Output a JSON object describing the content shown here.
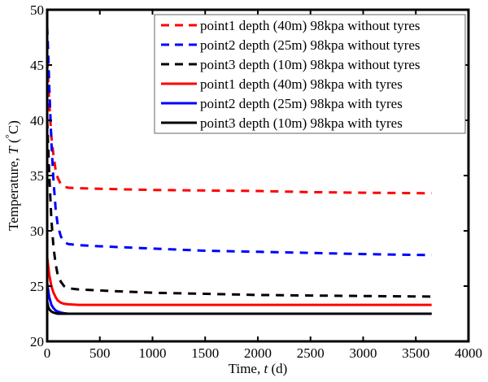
{
  "chart_data": {
    "type": "line",
    "title": "",
    "xlabel": "Time, t (d)",
    "xlabel_parts": {
      "prefix": "Time, ",
      "var": "t",
      "suffix": " (d)"
    },
    "ylabel": "Temperature, T (°C)",
    "ylabel_parts": {
      "prefix": "Temperature, ",
      "var": "T",
      "suffix": " (",
      "degree": "°",
      "unit": "C)"
    },
    "xlim": [
      0,
      4000
    ],
    "ylim": [
      20,
      50
    ],
    "xticks": [
      0,
      500,
      1000,
      1500,
      2000,
      2500,
      3000,
      3500,
      4000
    ],
    "yticks": [
      20,
      25,
      30,
      35,
      40,
      45,
      50
    ],
    "grid": false,
    "legend_position": "top-right",
    "series": [
      {
        "name": "point1 depth (40m) 98kpa without tyres",
        "color": "#ff0000",
        "style": "dashed",
        "x": [
          0,
          20,
          40,
          60,
          80,
          100,
          130,
          160,
          200,
          300,
          500,
          1000,
          1500,
          2000,
          2500,
          3000,
          3650
        ],
        "y": [
          45.5,
          41.5,
          38.5,
          36.8,
          35.5,
          34.8,
          34.2,
          34.0,
          33.9,
          33.85,
          33.8,
          33.7,
          33.65,
          33.6,
          33.5,
          33.45,
          33.4
        ]
      },
      {
        "name": "point2 depth (25m) 98kpa without tyres",
        "color": "#0000ff",
        "style": "dashed",
        "x": [
          0,
          10,
          20,
          40,
          60,
          80,
          100,
          130,
          160,
          200,
          300,
          500,
          1000,
          1500,
          2000,
          2500,
          3000,
          3650
        ],
        "y": [
          48.5,
          46,
          43,
          38,
          34.5,
          32,
          30.5,
          29.5,
          29.0,
          28.8,
          28.7,
          28.6,
          28.4,
          28.2,
          28.1,
          28.0,
          27.9,
          27.8
        ]
      },
      {
        "name": "point3 depth (10m) 98kpa without tyres",
        "color": "#000000",
        "style": "dashed",
        "x": [
          0,
          10,
          20,
          40,
          60,
          80,
          100,
          130,
          160,
          200,
          300,
          500,
          1000,
          1500,
          2000,
          2500,
          3000,
          3650
        ],
        "y": [
          40,
          37.5,
          35,
          31,
          28.5,
          27,
          26,
          25.4,
          25.0,
          24.8,
          24.7,
          24.6,
          24.4,
          24.3,
          24.2,
          24.15,
          24.1,
          24.05
        ]
      },
      {
        "name": "point1 depth (40m) 98kpa with tyres",
        "color": "#ff0000",
        "style": "solid",
        "x": [
          0,
          10,
          20,
          40,
          60,
          80,
          100,
          130,
          160,
          200,
          300,
          500,
          1000,
          2000,
          3000,
          3650
        ],
        "y": [
          27.6,
          26.8,
          26.0,
          25.0,
          24.4,
          24.0,
          23.7,
          23.5,
          23.4,
          23.35,
          23.3,
          23.3,
          23.3,
          23.3,
          23.3,
          23.3
        ]
      },
      {
        "name": "point2 depth (25m) 98kpa with tyres",
        "color": "#0000ff",
        "style": "solid",
        "x": [
          0,
          10,
          20,
          40,
          60,
          80,
          100,
          130,
          160,
          200,
          300,
          500,
          1000,
          2000,
          3000,
          3650
        ],
        "y": [
          25.3,
          24.6,
          24.0,
          23.3,
          23.0,
          22.8,
          22.7,
          22.6,
          22.55,
          22.5,
          22.5,
          22.5,
          22.5,
          22.5,
          22.5,
          22.5
        ]
      },
      {
        "name": "point3 depth (10m) 98kpa with tyres",
        "color": "#000000",
        "style": "solid",
        "x": [
          0,
          10,
          20,
          40,
          60,
          80,
          100,
          130,
          160,
          200,
          300,
          500,
          1000,
          2000,
          3000,
          3650
        ],
        "y": [
          23.6,
          23.1,
          22.9,
          22.7,
          22.6,
          22.55,
          22.5,
          22.5,
          22.5,
          22.5,
          22.5,
          22.5,
          22.5,
          22.5,
          22.5,
          22.5
        ]
      }
    ]
  }
}
